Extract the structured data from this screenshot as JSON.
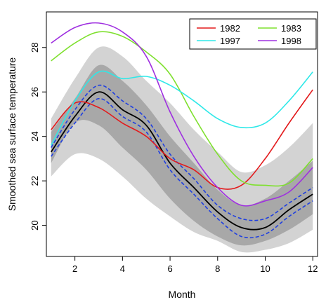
{
  "chart_data": {
    "type": "line",
    "title": "",
    "xlabel": "Month",
    "ylabel": "Smoothed sea surface temperature",
    "xlim": [
      0.8,
      12.2
    ],
    "ylim": [
      18.6,
      29.6
    ],
    "xticks": [
      2,
      4,
      6,
      8,
      10,
      12
    ],
    "yticks": [
      20,
      22,
      24,
      26,
      28
    ],
    "grid": false,
    "legend_position": "top-right",
    "bands": [
      {
        "role": "outer-band",
        "color": "#d3d3d3",
        "x": [
          1,
          2,
          3,
          4,
          5,
          6,
          7,
          8,
          9,
          10,
          11,
          12
        ],
        "lower": [
          22.2,
          23.2,
          23.0,
          22.2,
          21.2,
          20.4,
          19.7,
          19.3,
          18.8,
          18.9,
          19.2,
          19.8
        ],
        "upper": [
          24.8,
          26.6,
          28.0,
          27.6,
          26.5,
          25.5,
          24.3,
          23.3,
          22.4,
          22.7,
          23.5,
          24.6
        ]
      },
      {
        "role": "inner-band",
        "color": "#a8a8a8",
        "x": [
          1,
          2,
          3,
          4,
          5,
          6,
          7,
          8,
          9,
          10,
          11,
          12
        ],
        "lower": [
          22.8,
          24.6,
          24.5,
          23.5,
          22.5,
          21.2,
          20.2,
          19.5,
          19.1,
          19.3,
          19.8,
          20.5
        ],
        "upper": [
          24.2,
          25.7,
          27.2,
          26.5,
          25.4,
          24.0,
          22.8,
          21.6,
          20.9,
          21.2,
          22.0,
          22.9
        ]
      }
    ],
    "series": [
      {
        "name": "1982",
        "color": "#e31a1c",
        "x": [
          1,
          2,
          3,
          4,
          5,
          6,
          7,
          8,
          9,
          10,
          11,
          12
        ],
        "values": [
          24.3,
          25.5,
          25.3,
          24.6,
          24.0,
          23.0,
          22.5,
          21.7,
          21.8,
          23.0,
          24.6,
          26.1
        ]
      },
      {
        "name": "1983",
        "color": "#7fe02f",
        "x": [
          1,
          2,
          3,
          4,
          5,
          6,
          7,
          8,
          9,
          10,
          11,
          12
        ],
        "values": [
          27.4,
          28.2,
          28.7,
          28.5,
          27.8,
          26.8,
          24.9,
          23.2,
          22.0,
          21.8,
          21.9,
          23.0
        ]
      },
      {
        "name": "1997",
        "color": "#2ee8e8",
        "x": [
          1,
          2,
          3,
          4,
          5,
          6,
          7,
          8,
          9,
          10,
          11,
          12
        ],
        "values": [
          23.6,
          25.6,
          26.9,
          26.6,
          26.7,
          26.3,
          25.6,
          24.8,
          24.4,
          24.6,
          25.6,
          26.9
        ]
      },
      {
        "name": "1998",
        "color": "#9f30e0",
        "x": [
          1,
          2,
          3,
          4,
          5,
          6,
          7,
          8,
          9,
          10,
          11,
          12
        ],
        "values": [
          28.2,
          28.9,
          29.1,
          28.7,
          27.6,
          25.1,
          23.1,
          21.7,
          20.9,
          21.1,
          21.5,
          22.6
        ]
      },
      {
        "role": "mean",
        "color": "#000000",
        "style": "solid",
        "x": [
          1,
          2,
          3,
          4,
          5,
          6,
          7,
          8,
          9,
          10,
          11,
          12
        ],
        "values": [
          23.3,
          24.9,
          26.0,
          25.2,
          24.5,
          22.8,
          21.7,
          20.6,
          19.9,
          19.9,
          20.7,
          21.4
        ]
      },
      {
        "role": "upper-bound",
        "color": "#1f3fe0",
        "style": "dashed",
        "x": [
          1,
          2,
          3,
          4,
          5,
          6,
          7,
          8,
          9,
          10,
          11,
          12
        ],
        "values": [
          23.5,
          25.2,
          26.3,
          25.6,
          24.8,
          23.2,
          22.1,
          20.9,
          20.3,
          20.3,
          21.0,
          21.7
        ]
      },
      {
        "role": "lower-bound",
        "color": "#1f3fe0",
        "style": "dashed",
        "x": [
          1,
          2,
          3,
          4,
          5,
          6,
          7,
          8,
          9,
          10,
          11,
          12
        ],
        "values": [
          23.1,
          24.6,
          25.7,
          24.9,
          24.2,
          22.5,
          21.4,
          20.3,
          19.5,
          19.6,
          20.4,
          21.1
        ]
      }
    ]
  }
}
